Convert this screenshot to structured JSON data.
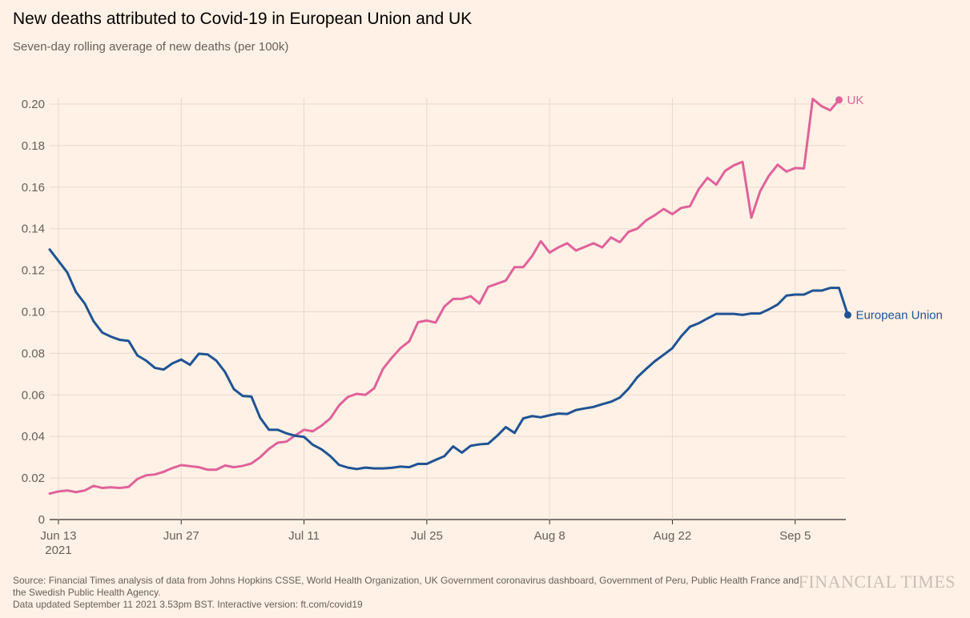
{
  "chart_data": {
    "type": "line",
    "title": "New deaths attributed to Covid-19 in European Union and UK",
    "subtitle": "Seven-day rolling average of new deaths (per 100k)",
    "xlabel": "",
    "ylabel": "",
    "x_start": "2021-06-12",
    "x_end": "2021-09-11",
    "x_ticks": [
      {
        "day": 1,
        "label": "Jun 13",
        "sublabel": "2021"
      },
      {
        "day": 15,
        "label": "Jun 27"
      },
      {
        "day": 29,
        "label": "Jul 11"
      },
      {
        "day": 43,
        "label": "Jul 25"
      },
      {
        "day": 57,
        "label": "Aug 8"
      },
      {
        "day": 71,
        "label": "Aug 22"
      },
      {
        "day": 85,
        "label": "Sep 5"
      }
    ],
    "ylim": [
      0,
      0.2
    ],
    "y_ticks": [
      "0",
      "0.02",
      "0.04",
      "0.06",
      "0.08",
      "0.10",
      "0.12",
      "0.14",
      "0.16",
      "0.18",
      "0.20"
    ],
    "grid": true,
    "series": [
      {
        "name": "UK",
        "color": "#e0629b",
        "values": [
          0.0125,
          0.0135,
          0.014,
          0.0132,
          0.014,
          0.0162,
          0.0152,
          0.0155,
          0.0152,
          0.0157,
          0.0195,
          0.0213,
          0.0217,
          0.023,
          0.0248,
          0.0262,
          0.0257,
          0.0252,
          0.024,
          0.024,
          0.026,
          0.0252,
          0.0258,
          0.027,
          0.03,
          0.034,
          0.037,
          0.0375,
          0.0405,
          0.0432,
          0.0425,
          0.0452,
          0.0487,
          0.055,
          0.059,
          0.0605,
          0.06,
          0.0632,
          0.0725,
          0.0778,
          0.0825,
          0.0858,
          0.095,
          0.0958,
          0.0948,
          0.1025,
          0.1062,
          0.1062,
          0.1075,
          0.104,
          0.112,
          0.1135,
          0.115,
          0.1215,
          0.1215,
          0.1268,
          0.134,
          0.1285,
          0.131,
          0.133,
          0.1295,
          0.1312,
          0.133,
          0.131,
          0.1358,
          0.1335,
          0.1385,
          0.14,
          0.144,
          0.1465,
          0.1495,
          0.147,
          0.15,
          0.1508,
          0.159,
          0.1645,
          0.1612,
          0.1678,
          0.1705,
          0.1722,
          0.1453,
          0.158,
          0.1655,
          0.1708,
          0.1675,
          0.1692,
          0.169,
          0.2025,
          0.199,
          0.197,
          0.202
        ]
      },
      {
        "name": "European Union",
        "color": "#1f5393",
        "values": [
          0.13,
          0.1245,
          0.119,
          0.1095,
          0.104,
          0.0955,
          0.09,
          0.088,
          0.0865,
          0.086,
          0.079,
          0.0765,
          0.073,
          0.0722,
          0.0752,
          0.077,
          0.0745,
          0.0798,
          0.0795,
          0.0765,
          0.071,
          0.0628,
          0.0595,
          0.0592,
          0.049,
          0.0432,
          0.0432,
          0.0415,
          0.0403,
          0.0398,
          0.036,
          0.0338,
          0.0305,
          0.0263,
          0.025,
          0.0243,
          0.025,
          0.0246,
          0.0246,
          0.0249,
          0.0255,
          0.0252,
          0.0268,
          0.0268,
          0.0287,
          0.0305,
          0.0352,
          0.0322,
          0.0355,
          0.0362,
          0.0365,
          0.0402,
          0.0445,
          0.0417,
          0.0487,
          0.0498,
          0.0492,
          0.0502,
          0.051,
          0.0508,
          0.0527,
          0.0535,
          0.0542,
          0.0555,
          0.0567,
          0.0587,
          0.063,
          0.0685,
          0.0725,
          0.0762,
          0.0793,
          0.0825,
          0.0882,
          0.0928,
          0.0945,
          0.0968,
          0.099,
          0.099,
          0.099,
          0.0985,
          0.0992,
          0.0992,
          0.1012,
          0.1035,
          0.1078,
          0.1083,
          0.1083,
          0.1102,
          0.1102,
          0.1115,
          0.1115,
          0.0985
        ]
      }
    ]
  },
  "footer": {
    "source_line1": "Source: Financial Times analysis of data from Johns Hopkins CSSE, World Health Organization, UK Government coronavirus dashboard, Government of Peru, Public Health France and",
    "source_line2": "the Swedish Public Health Agency.",
    "source_line3": "Data updated September 11 2021 3.53pm BST. Interactive version: ft.com/covid19",
    "logo": "FINANCIAL TIMES"
  }
}
